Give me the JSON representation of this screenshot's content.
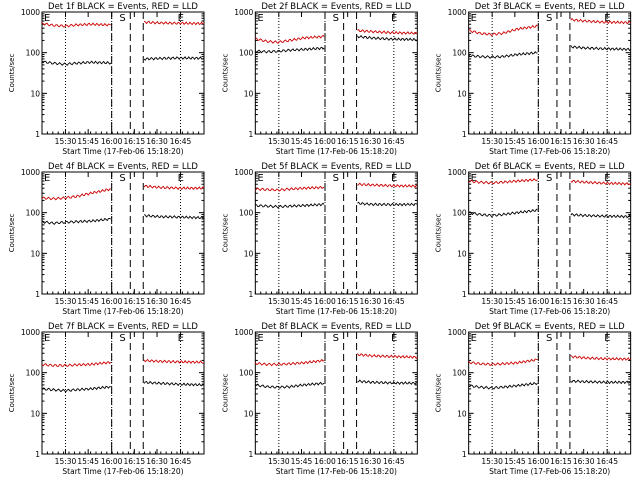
{
  "chart_data": [
    {
      "type": "line",
      "title": "Det 1f BLACK = Events, RED = LLD",
      "xlabel": "Start Time (17-Feb-06 15:18:20)",
      "ylabel": "Counts/sec",
      "yscale": "log",
      "ylim": [
        1,
        1000
      ],
      "x_ticks": [
        "15:30",
        "15:45",
        "16:00",
        "16:15",
        "16:30",
        "16:45"
      ],
      "markers": {
        "E1": "E",
        "S": "S",
        "E2": "E"
      },
      "series": [
        {
          "color": "#cc0000",
          "values": [
            520,
            470,
            450,
            480,
            500,
            480,
            0,
            0,
            0,
            560,
            540,
            530,
            520
          ]
        },
        {
          "color": "#000000",
          "values": [
            60,
            55,
            52,
            55,
            58,
            56,
            0,
            0,
            0,
            70,
            72,
            74,
            73
          ]
        }
      ]
    },
    {
      "type": "line",
      "title": "Det 2f BLACK = Events, RED = LLD",
      "xlabel": "Start Time (17-Feb-06 15:18:20)",
      "ylabel": "Counts/sec",
      "yscale": "log",
      "ylim": [
        1,
        1000
      ],
      "x_ticks": [
        "15:30",
        "15:45",
        "16:00",
        "16:15",
        "16:30",
        "16:45"
      ],
      "markers": {
        "E1": "E",
        "S": "S",
        "E2": "E"
      },
      "series": [
        {
          "color": "#cc0000",
          "values": [
            220,
            190,
            180,
            200,
            230,
            250,
            0,
            0,
            0,
            350,
            330,
            310,
            300
          ]
        },
        {
          "color": "#000000",
          "values": [
            110,
            105,
            108,
            115,
            120,
            130,
            0,
            0,
            0,
            250,
            230,
            215,
            210
          ]
        }
      ]
    },
    {
      "type": "line",
      "title": "Det 3f BLACK = Events, RED = LLD",
      "xlabel": "Start Time (17-Feb-06 15:18:20)",
      "ylabel": "Counts/sec",
      "yscale": "log",
      "ylim": [
        1,
        1000
      ],
      "x_ticks": [
        "15:30",
        "15:45",
        "16:00",
        "16:15",
        "16:30",
        "16:45"
      ],
      "markers": {
        "E1": "E",
        "S": "S",
        "E2": "E"
      },
      "series": [
        {
          "color": "#cc0000",
          "values": [
            350,
            300,
            280,
            300,
            380,
            450,
            0,
            0,
            0,
            650,
            600,
            560,
            550
          ]
        },
        {
          "color": "#000000",
          "values": [
            85,
            80,
            78,
            80,
            90,
            100,
            0,
            0,
            0,
            140,
            130,
            125,
            120
          ]
        }
      ]
    },
    {
      "type": "line",
      "title": "Det 4f BLACK = Events, RED = LLD",
      "xlabel": "Start Time (17-Feb-06 15:18:20)",
      "ylabel": "Counts/sec",
      "yscale": "log",
      "ylim": [
        1,
        1000
      ],
      "x_ticks": [
        "15:30",
        "15:45",
        "16:00",
        "16:15",
        "16:30",
        "16:45"
      ],
      "markers": {
        "E1": "E",
        "S": "S",
        "E2": "E"
      },
      "series": [
        {
          "color": "#cc0000",
          "values": [
            230,
            220,
            230,
            250,
            300,
            380,
            0,
            0,
            0,
            450,
            420,
            400,
            400
          ]
        },
        {
          "color": "#000000",
          "values": [
            60,
            55,
            58,
            60,
            62,
            70,
            0,
            0,
            0,
            85,
            80,
            78,
            75
          ]
        }
      ]
    },
    {
      "type": "line",
      "title": "Det 5f BLACK = Events, RED = LLD",
      "xlabel": "Start Time (17-Feb-06 15:18:20)",
      "ylabel": "Counts/sec",
      "yscale": "log",
      "ylim": [
        1,
        1000
      ],
      "x_ticks": [
        "15:30",
        "15:45",
        "16:00",
        "16:15",
        "16:30",
        "16:45"
      ],
      "markers": {
        "E1": "E",
        "S": "S",
        "E2": "E"
      },
      "series": [
        {
          "color": "#cc0000",
          "values": [
            380,
            370,
            360,
            380,
            400,
            420,
            0,
            0,
            0,
            500,
            480,
            460,
            450
          ]
        },
        {
          "color": "#000000",
          "values": [
            150,
            145,
            140,
            145,
            150,
            160,
            0,
            0,
            0,
            170,
            160,
            158,
            160
          ]
        }
      ]
    },
    {
      "type": "line",
      "title": "Det 6f BLACK = Events, RED = LLD",
      "xlabel": "Start Time (17-Feb-06 15:18:20)",
      "ylabel": "Counts/sec",
      "yscale": "log",
      "ylim": [
        1,
        1000
      ],
      "x_ticks": [
        "15:30",
        "15:45",
        "16:00",
        "16:15",
        "16:30",
        "16:45"
      ],
      "markers": {
        "E1": "E",
        "S": "S",
        "E2": "E"
      },
      "series": [
        {
          "color": "#cc0000",
          "values": [
            600,
            560,
            540,
            560,
            600,
            650,
            0,
            0,
            0,
            600,
            560,
            530,
            510
          ]
        },
        {
          "color": "#000000",
          "values": [
            100,
            90,
            85,
            90,
            100,
            115,
            0,
            0,
            0,
            90,
            85,
            82,
            80
          ]
        }
      ]
    },
    {
      "type": "line",
      "title": "Det 7f BLACK = Events, RED = LLD",
      "xlabel": "Start Time (17-Feb-06 15:18:20)",
      "ylabel": "Counts/sec",
      "yscale": "log",
      "ylim": [
        1,
        1000
      ],
      "x_ticks": [
        "15:30",
        "15:45",
        "16:00",
        "16:15",
        "16:30",
        "16:45"
      ],
      "markers": {
        "E1": "E",
        "S": "S",
        "E2": "E"
      },
      "series": [
        {
          "color": "#cc0000",
          "values": [
            160,
            150,
            150,
            155,
            160,
            180,
            0,
            0,
            0,
            200,
            190,
            185,
            180
          ]
        },
        {
          "color": "#000000",
          "values": [
            40,
            38,
            36,
            38,
            40,
            45,
            0,
            0,
            0,
            58,
            55,
            52,
            50
          ]
        }
      ]
    },
    {
      "type": "line",
      "title": "Det 8f BLACK = Events, RED = LLD",
      "xlabel": "Start Time (17-Feb-06 15:18:20)",
      "ylabel": "Counts/sec",
      "yscale": "log",
      "ylim": [
        1,
        1000
      ],
      "x_ticks": [
        "15:30",
        "15:45",
        "16:00",
        "16:15",
        "16:30",
        "16:45"
      ],
      "markers": {
        "E1": "E",
        "S": "S",
        "E2": "E"
      },
      "series": [
        {
          "color": "#cc0000",
          "values": [
            170,
            160,
            160,
            165,
            175,
            200,
            0,
            0,
            0,
            280,
            260,
            250,
            240
          ]
        },
        {
          "color": "#000000",
          "values": [
            50,
            45,
            44,
            45,
            50,
            55,
            0,
            0,
            0,
            62,
            58,
            56,
            55
          ]
        }
      ]
    },
    {
      "type": "line",
      "title": "Det 9f BLACK = Events, RED = LLD",
      "xlabel": "Start Time (17-Feb-06 15:18:20)",
      "ylabel": "Counts/sec",
      "yscale": "log",
      "ylim": [
        1,
        1000
      ],
      "x_ticks": [
        "15:30",
        "15:45",
        "16:00",
        "16:15",
        "16:30",
        "16:45"
      ],
      "markers": {
        "E1": "E",
        "S": "S",
        "E2": "E"
      },
      "series": [
        {
          "color": "#cc0000",
          "values": [
            180,
            165,
            160,
            165,
            175,
            210,
            0,
            0,
            0,
            250,
            230,
            220,
            215
          ]
        },
        {
          "color": "#000000",
          "values": [
            48,
            44,
            42,
            44,
            48,
            55,
            0,
            0,
            0,
            62,
            60,
            58,
            58
          ]
        }
      ]
    }
  ]
}
